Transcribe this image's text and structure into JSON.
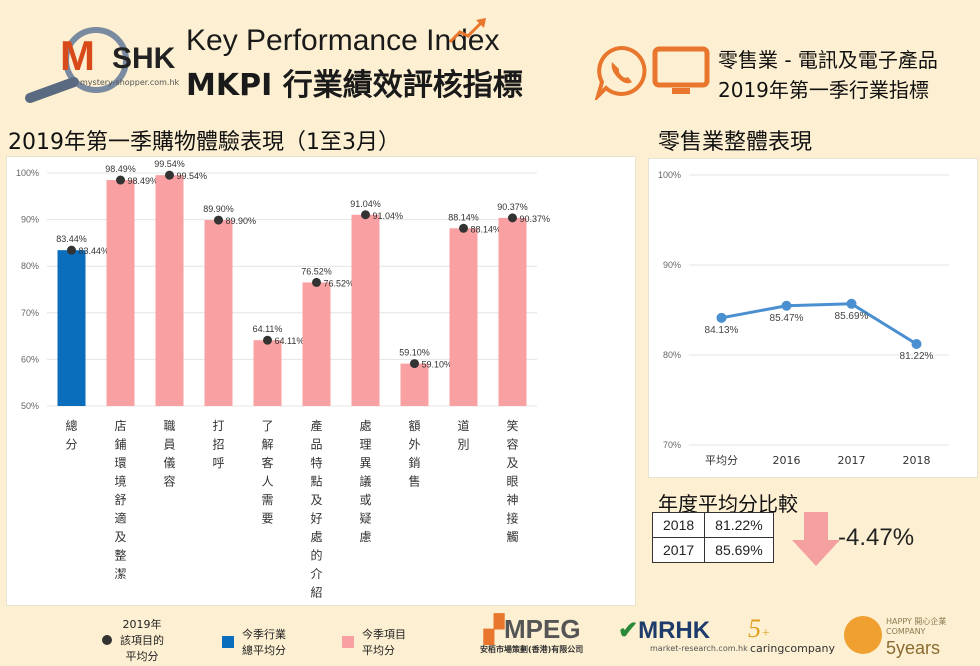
{
  "header": {
    "logo_letter": "M",
    "logo_name": "SHK",
    "logo_url": "mystery-shopper.com.hk",
    "title_en": "Key Performance Index",
    "title_zh": "MKPI 行業績效評核指標",
    "right_line1": "零售業 - 電訊及電子產品",
    "right_line2": "2019年第一季行業指標"
  },
  "sections": {
    "left_title": "2019年第一季購物體驗表現（1至3月）",
    "right_title": "零售業整體表現",
    "compare_title": "年度平均分比較"
  },
  "chart_data": [
    {
      "type": "bar",
      "categories": [
        "總分",
        "店鋪環境舒適及整潔",
        "職員儀容",
        "打招呼",
        "了解客人需要",
        "產品特點及好處的介紹",
        "處理異議或疑慮",
        "額外銷售",
        "道別",
        "笑容及眼神接觸"
      ],
      "values": [
        83.44,
        98.49,
        99.54,
        89.9,
        64.11,
        76.52,
        91.04,
        59.1,
        88.14,
        90.37
      ],
      "bar_labels": [
        "83.44%",
        "98.49%",
        "99.54%",
        "89.90%",
        "64.11%",
        "76.52%",
        "91.04%",
        "59.10%",
        "88.14%",
        "90.37%"
      ],
      "bar_colors": [
        "#0a6ebd",
        "#f9a0a2",
        "#f9a0a2",
        "#f9a0a2",
        "#f9a0a2",
        "#f9a0a2",
        "#f9a0a2",
        "#f9a0a2",
        "#f9a0a2",
        "#f9a0a2"
      ],
      "ylim": [
        50,
        100
      ],
      "yticks": [
        "50%",
        "60%",
        "70%",
        "80%",
        "90%",
        "100%"
      ],
      "grid": true
    },
    {
      "type": "line",
      "categories": [
        "平均分",
        "2016",
        "2017",
        "2018"
      ],
      "values": [
        84.13,
        85.47,
        85.69,
        81.22
      ],
      "point_labels": [
        "84.13%",
        "85.47%",
        "85.69%",
        "81.22%"
      ],
      "line_color": "#4a8fd0",
      "ylim": [
        70,
        100
      ],
      "yticks": [
        "70%",
        "80%",
        "90%",
        "100%"
      ],
      "grid": true
    }
  ],
  "compare": {
    "rows": [
      {
        "year": "2018",
        "value": "81.22%"
      },
      {
        "year": "2017",
        "value": "85.69%"
      }
    ],
    "diff": "-4.47%",
    "arrow_color": "#f4a0a0"
  },
  "legend": {
    "dot_label": "2019年\n該項目的\n平均分",
    "blue_label": "今季行業\n總平均分",
    "pink_label": "今季項目\n平均分"
  },
  "footer": {
    "mpeg": "MPEG",
    "mpeg_sub": "安栢市場策劃(香港)有限公司",
    "mrhk": "MRHK",
    "mrhk_sub": "market-research.com.hk",
    "caring": "caringcompany",
    "happy": "HAPPY 開心企業 COMPANY",
    "happy_years": "5years"
  },
  "colors": {
    "background": "#fdf0d2",
    "accent_orange": "#e8762d"
  }
}
